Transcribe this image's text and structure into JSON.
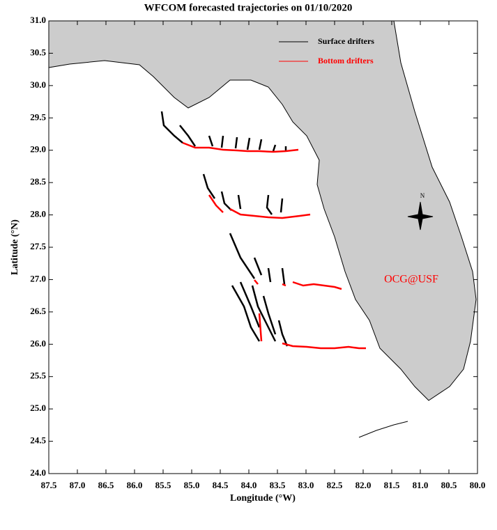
{
  "chart_data": {
    "type": "map",
    "title": "WFCOM forecasted trajectories on 01/10/2020",
    "xlabel": "Longitude (°W)",
    "ylabel": "Latitude (°N)",
    "xlim": [
      87.5,
      80.0
    ],
    "ylim": [
      24.0,
      31.0
    ],
    "xticks": [
      87.5,
      {
        "value": 87,
        "label": "87.0"
      },
      86.5,
      {
        "value": 86,
        "label": "86.0"
      },
      85.5,
      {
        "value": 85,
        "label": "85.0"
      },
      84.5,
      {
        "value": 84,
        "label": "84.0"
      },
      83.5,
      {
        "value": 83,
        "label": "83.0"
      },
      82.5,
      {
        "value": 82,
        "label": "82.0"
      },
      81.5,
      {
        "value": 81,
        "label": "81.0"
      },
      80.5,
      {
        "value": 80,
        "label": "80.0"
      }
    ],
    "yticks": [
      {
        "value": 24,
        "label": "24.0"
      },
      24.5,
      {
        "value": 25,
        "label": "25.0"
      },
      25.5,
      {
        "value": 26,
        "label": "26.0"
      },
      26.5,
      {
        "value": 27,
        "label": "27.0"
      },
      27.5,
      {
        "value": 28,
        "label": "28.0"
      },
      28.5,
      {
        "value": 29,
        "label": "29.0"
      },
      29.5,
      {
        "value": 30,
        "label": "30.0"
      },
      30.5,
      {
        "value": 31,
        "label": "31.0"
      }
    ],
    "series": [
      {
        "name": "Surface drifters",
        "color": "#000000"
      },
      {
        "name": "Bottom drifters",
        "color": "#ff0000"
      }
    ],
    "land_color": "#cccccc",
    "annotation": {
      "text": "OCG@USF",
      "color": "#ff0000"
    },
    "compass": "N"
  }
}
